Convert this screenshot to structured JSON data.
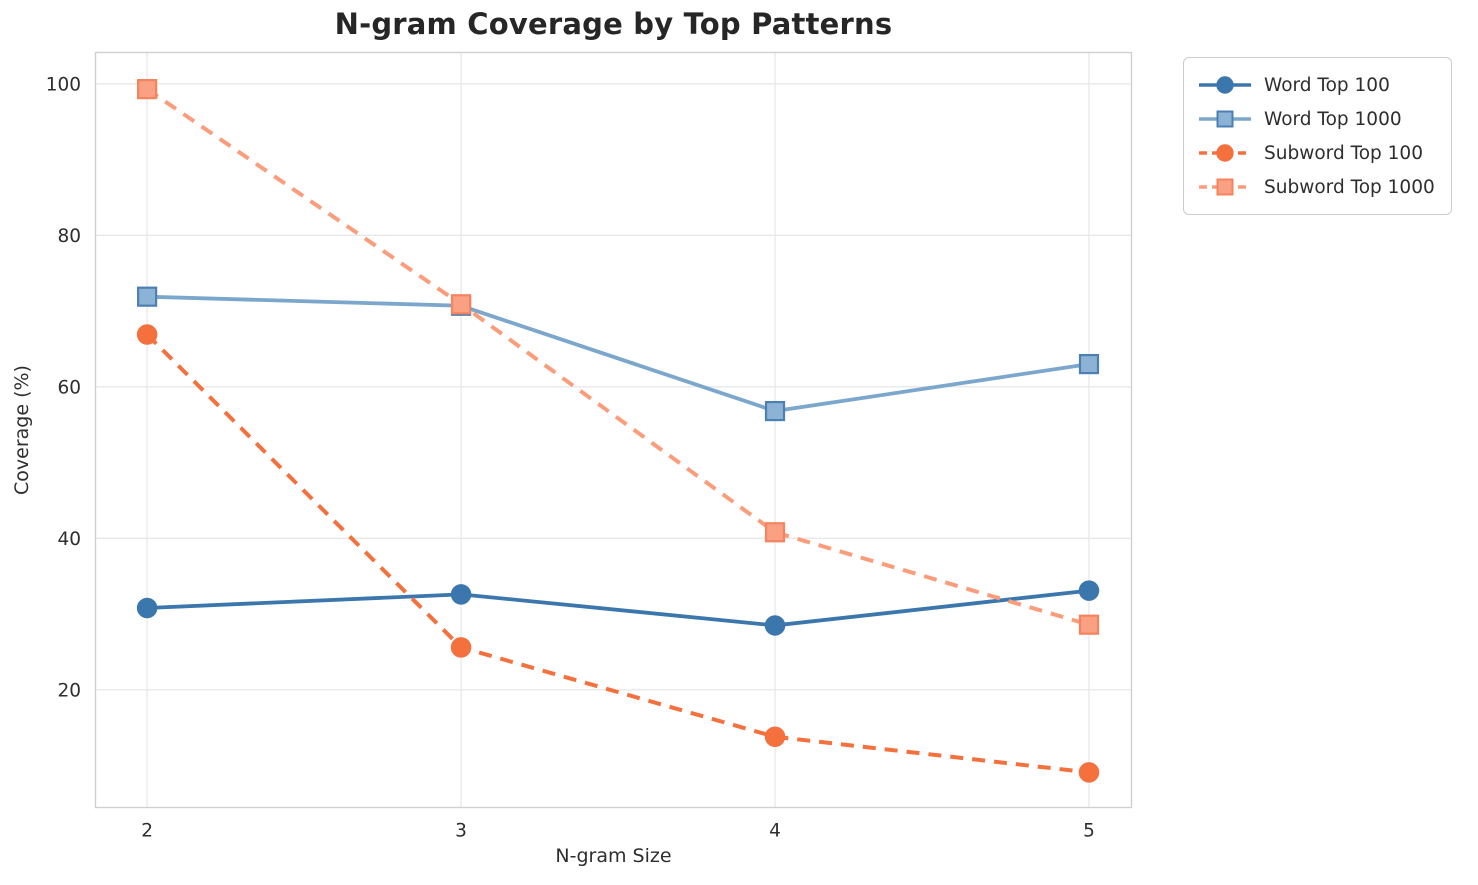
{
  "chart_data": {
    "type": "line",
    "title": "N-gram Coverage by Top Patterns",
    "xlabel": "N-gram Size",
    "ylabel": "Coverage (%)",
    "x": [
      2,
      3,
      4,
      5
    ],
    "xtick_labels": [
      "2",
      "3",
      "4",
      "5"
    ],
    "ytick_values": [
      20,
      40,
      60,
      80,
      100
    ],
    "ytick_labels": [
      "20",
      "40",
      "60",
      "80",
      "100"
    ],
    "x_range": [
      1.834,
      5.137
    ],
    "y_range": [
      4.4,
      104.2
    ],
    "grid": true,
    "legend_position": "upper-right-outside",
    "series": [
      {
        "name": "Word Top 100",
        "values": [
          30.8,
          32.6,
          28.5,
          33.1
        ],
        "color": "#3b77ad",
        "linestyle": "solid",
        "marker": "circle",
        "marker_fill": "#3b77ad",
        "marker_edge": "#3b77ad"
      },
      {
        "name": "Word Top 1000",
        "values": [
          71.9,
          70.7,
          56.8,
          63.0
        ],
        "color": "#7ca7cd",
        "linestyle": "solid",
        "marker": "square",
        "marker_fill": "#8cb2d5",
        "marker_edge": "#4d80b2"
      },
      {
        "name": "Subword Top 100",
        "values": [
          66.9,
          25.6,
          13.8,
          9.1
        ],
        "color": "#f4703d",
        "linestyle": "dashed",
        "marker": "circle",
        "marker_fill": "#f4703d",
        "marker_edge": "#f4703d"
      },
      {
        "name": "Subword Top 1000",
        "values": [
          99.3,
          70.9,
          40.8,
          28.6
        ],
        "color": "#fb9c7b",
        "linestyle": "dashed",
        "marker": "square",
        "marker_fill": "#fba183",
        "marker_edge": "#f4835e"
      }
    ]
  },
  "colors": {
    "background": "#ffffff",
    "grid": "#e8e8e8",
    "spine": "#cfcfcf",
    "title_text": "#262626",
    "tick_text": "#2e2e2e",
    "legend_border": "#cccccc"
  }
}
